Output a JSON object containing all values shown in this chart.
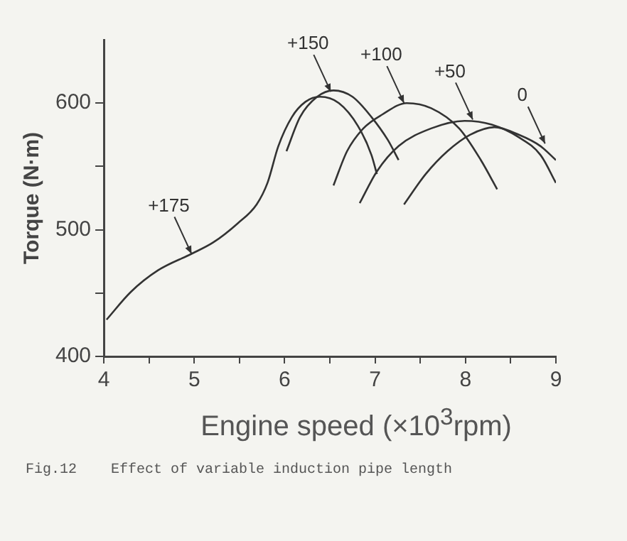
{
  "chart_data": {
    "type": "line",
    "xlabel": "Engine speed  (×10$^{3}$rpm)",
    "ylabel": "Torque (N·m)",
    "xlim": [
      4,
      9
    ],
    "xticks": [
      4,
      {
        "value": 4.5,
        "label": null
      },
      5,
      {
        "value": 5.5,
        "label": null
      },
      6,
      {
        "value": 6.5,
        "label": null
      },
      7,
      {
        "value": 7.5,
        "label": null
      },
      8,
      {
        "value": 8.5,
        "label": null
      },
      9
    ],
    "ylim": [
      400,
      650
    ],
    "yticks": [
      400,
      {
        "value": 450,
        "label": null
      },
      500,
      {
        "value": 550,
        "label": null
      },
      600
    ],
    "grid": false,
    "legend": false,
    "marker": "none",
    "line_style": "solid",
    "series": [
      {
        "color": "#333333",
        "x": [
          4.03,
          4.3,
          4.6,
          4.97,
          5.21,
          5.48,
          5.69,
          5.81,
          5.93,
          6.08,
          6.23,
          6.39,
          6.6,
          6.81,
          6.96,
          7.02
        ],
        "values": [
          429,
          451,
          468,
          481,
          490,
          505,
          520,
          537,
          566,
          589,
          601,
          605,
          600,
          582,
          559,
          544
        ]
      },
      {
        "color": "#333333",
        "x": [
          6.02,
          6.17,
          6.36,
          6.54,
          6.75,
          6.96,
          7.14,
          7.26
        ],
        "values": [
          562,
          589,
          605,
          610,
          605,
          589,
          571,
          555
        ]
      },
      {
        "color": "#333333",
        "x": [
          6.54,
          6.69,
          6.87,
          7.08,
          7.35,
          7.62,
          7.93,
          8.17,
          8.35
        ],
        "values": [
          535,
          562,
          580,
          591,
          600,
          596,
          580,
          555,
          532
        ]
      },
      {
        "color": "#333333",
        "x": [
          6.83,
          7.02,
          7.26,
          7.62,
          7.99,
          8.29,
          8.59,
          8.83,
          9
        ],
        "values": [
          521,
          546,
          566,
          580,
          586,
          583,
          573,
          559,
          537
        ]
      },
      {
        "color": "#333333",
        "x": [
          7.32,
          7.56,
          7.8,
          8.05,
          8.32,
          8.59,
          8.83,
          9
        ],
        "values": [
          520,
          544,
          562,
          575,
          581,
          575,
          566,
          555
        ]
      }
    ],
    "annotations": [
      {
        "text": "+175",
        "x": 4.97,
        "y": 481
      },
      {
        "text": "+150",
        "x": 6.51,
        "y": 609
      },
      {
        "text": "+100",
        "x": 7.32,
        "y": 600
      },
      {
        "text": "+50",
        "x": 8.08,
        "y": 587
      },
      {
        "text": "0",
        "x": 8.88,
        "y": 568
      },
      "Fig.12    Effect of variable induction pipe length"
    ]
  }
}
